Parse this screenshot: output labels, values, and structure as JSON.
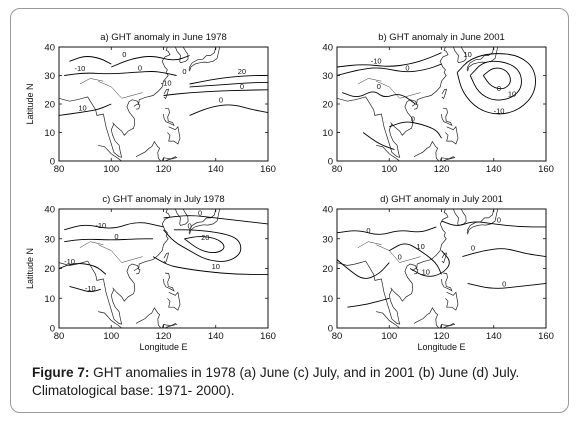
{
  "figure": {
    "caption_label": "Figure 7:",
    "caption_text": " GHT anomalies in 1978 (a) June (c) July, and in 2001 (b) June (d) July. Climatological base: 1971- 2000)."
  },
  "chart_data": [
    {
      "type": "contour",
      "title": "a) GHT anomaly in June 1978",
      "xlabel": "",
      "ylabel": "Latitude N",
      "xlim": [
        80,
        160
      ],
      "ylim": [
        0,
        40
      ],
      "xticks": [
        "80",
        "100",
        "120",
        "140",
        "160"
      ],
      "yticks": [
        "0",
        "10",
        "20",
        "30",
        "40"
      ],
      "contour_labels": [
        "-10",
        "0",
        "0",
        "-10",
        "20",
        "0",
        "10",
        "0",
        "0"
      ]
    },
    {
      "type": "contour",
      "title": "b) GHT anomaly in June 2001",
      "xlabel": "",
      "ylabel": "",
      "xlim": [
        80,
        160
      ],
      "ylim": [
        0,
        40
      ],
      "xticks": [
        "80",
        "100",
        "120",
        "140",
        "160"
      ],
      "yticks": [
        "0",
        "10",
        "20",
        "30",
        "40"
      ],
      "contour_labels": [
        "-10",
        "0",
        "0",
        "-10",
        "10",
        "0",
        "0",
        "10"
      ]
    },
    {
      "type": "contour",
      "title": "c) GHT anomaly in July 1978",
      "xlabel": "Longitude E",
      "ylabel": "Latitude N",
      "xlim": [
        80,
        160
      ],
      "ylim": [
        0,
        40
      ],
      "xticks": [
        "80",
        "100",
        "120",
        "140",
        "160"
      ],
      "yticks": [
        "0",
        "10",
        "20",
        "30",
        "40"
      ],
      "contour_labels": [
        "-10",
        "0",
        "-10",
        "-10",
        "0",
        "20",
        "10",
        "0"
      ]
    },
    {
      "type": "contour",
      "title": "d) GHT anomaly in July 2001",
      "xlabel": "Longitude E",
      "ylabel": "",
      "xlim": [
        80,
        160
      ],
      "ylim": [
        0,
        40
      ],
      "xticks": [
        "80",
        "100",
        "120",
        "140",
        "160"
      ],
      "yticks": [
        "0",
        "10",
        "20",
        "30",
        "40"
      ],
      "contour_labels": [
        "0",
        "0",
        "10",
        "0",
        "10",
        "0",
        "0"
      ]
    }
  ]
}
